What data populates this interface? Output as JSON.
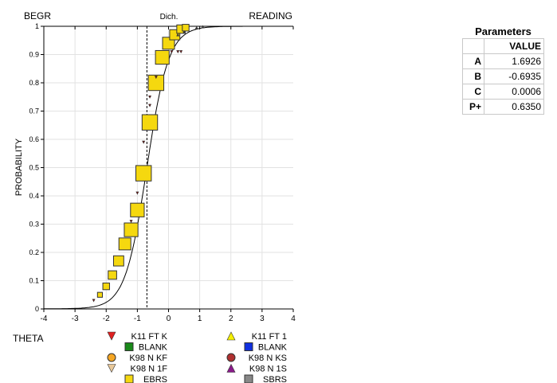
{
  "chart_data": {
    "type": "scatter",
    "title_left": "BEGR",
    "title_center": "Dich.",
    "title_right": "READING",
    "xlabel": "THETA",
    "ylabel": "PROBABILITY",
    "xlim": [
      -4,
      4
    ],
    "ylim": [
      0,
      1
    ],
    "x_ticks": [
      "-4",
      "-3",
      "-2",
      "-1",
      "0",
      "1",
      "2",
      "3",
      "4"
    ],
    "y_ticks": [
      "0",
      "0.1",
      "0.2",
      "0.3",
      "0.4",
      "0.5",
      "0.6",
      "0.7",
      "0.8",
      "0.9",
      "1"
    ],
    "grid": true,
    "curve": {
      "type": "3PL",
      "a": 1.6926,
      "b": -0.6935,
      "c": 0.0006,
      "D": 1.7
    },
    "dashed_line_x": -0.6935,
    "series": [
      {
        "name": "EBRS",
        "marker": "square",
        "color": "#f5d80f",
        "x": [
          -2.2,
          -2.0,
          -1.8,
          -1.6,
          -1.4,
          -1.2,
          -1.0,
          -0.8,
          -0.6,
          -0.4,
          -0.2,
          0.0,
          0.2,
          0.4,
          0.55
        ],
        "y": [
          0.05,
          0.08,
          0.12,
          0.17,
          0.23,
          0.28,
          0.35,
          0.48,
          0.66,
          0.8,
          0.89,
          0.94,
          0.97,
          0.99,
          0.995
        ],
        "weight": [
          1,
          2,
          3,
          4,
          5,
          6,
          6,
          7,
          7,
          7,
          6,
          5,
          4,
          3,
          2
        ]
      },
      {
        "name": "K98 N 1F",
        "marker": "triangle-down",
        "color": "#7a1010",
        "x": [
          -2.4,
          -1.2,
          -1.0,
          -0.8,
          -0.6,
          -0.6,
          -0.4,
          0.1,
          0.3,
          0.4
        ],
        "y": [
          0.03,
          0.31,
          0.41,
          0.59,
          0.72,
          0.75,
          0.82,
          0.91,
          0.91,
          0.91
        ]
      },
      {
        "name": "K98 N 1S",
        "marker": "triangle-up",
        "color": "#444444",
        "x": [
          0.3,
          0.5,
          0.9,
          1.1
        ],
        "y": [
          0.97,
          0.98,
          0.995,
          0.998
        ]
      }
    ],
    "legend": [
      {
        "label": "K11 FT K",
        "marker": "triangle-down",
        "color": "#e02020"
      },
      {
        "label": "BLANK",
        "marker": "square",
        "color": "#1a8a1a"
      },
      {
        "label": "K98 N KF",
        "marker": "circle",
        "color": "#f5a623"
      },
      {
        "label": "K98 N 1F",
        "marker": "triangle-down",
        "color": "#e8c89a"
      },
      {
        "label": "EBRS",
        "marker": "square",
        "color": "#f5d80f"
      },
      {
        "label": "K11 FT 1",
        "marker": "triangle-up",
        "color": "#f5f000"
      },
      {
        "label": "BLANK",
        "marker": "square",
        "color": "#1030e0"
      },
      {
        "label": "K98 N KS",
        "marker": "circle",
        "color": "#b03030"
      },
      {
        "label": "K98 N 1S",
        "marker": "triangle-up",
        "color": "#8a1a8a"
      },
      {
        "label": "SBRS",
        "marker": "square",
        "color": "#888888"
      }
    ]
  },
  "parameters": {
    "title": "Parameters",
    "header": "VALUE",
    "rows": [
      {
        "key": "A",
        "value": "1.6926"
      },
      {
        "key": "B",
        "value": "-0.6935"
      },
      {
        "key": "C",
        "value": "0.0006"
      },
      {
        "key": "P+",
        "value": "0.6350"
      }
    ]
  }
}
